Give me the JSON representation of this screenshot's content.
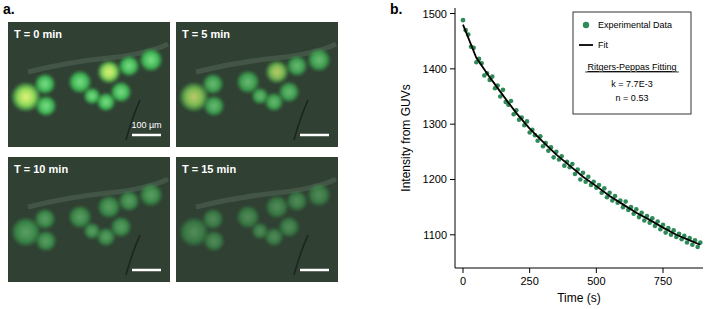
{
  "panel_labels": [
    "a.",
    "b."
  ],
  "panel_a": {
    "images": [
      {
        "label": "T = 0 min",
        "scale_bar": "100 µm"
      },
      {
        "label": "T = 5 min"
      },
      {
        "label": "T = 10 min"
      },
      {
        "label": "T = 15 min"
      }
    ]
  },
  "chart_data": {
    "type": "scatter",
    "x_label": "Time (s)",
    "y_label": "Intensity from GUVs",
    "annotations": [
      "Ritgers-Peppas Fitting",
      "k = 7.7E-3",
      "n = 0.53"
    ],
    "xlim": [
      -30,
      900
    ],
    "xticks": [
      0,
      250,
      500,
      750
    ],
    "ylim": [
      1040,
      1510
    ],
    "yticks": [
      1100,
      1200,
      1300,
      1400,
      1500
    ],
    "grid": false,
    "legend": "top-right",
    "series": [
      {
        "name": "Experimental Data",
        "type": "scatter",
        "marker": "circle",
        "color": "#2e8b57",
        "x": [
          0,
          10,
          20,
          30,
          40,
          50,
          60,
          70,
          80,
          90,
          100,
          110,
          120,
          130,
          140,
          150,
          160,
          170,
          180,
          190,
          200,
          210,
          220,
          230,
          240,
          250,
          260,
          270,
          280,
          290,
          300,
          310,
          320,
          330,
          340,
          350,
          360,
          370,
          380,
          390,
          400,
          410,
          420,
          430,
          440,
          450,
          460,
          470,
          480,
          490,
          500,
          510,
          520,
          530,
          540,
          550,
          560,
          570,
          580,
          590,
          600,
          610,
          620,
          630,
          640,
          650,
          660,
          670,
          680,
          690,
          700,
          710,
          720,
          730,
          740,
          750,
          760,
          770,
          780,
          790,
          800,
          810,
          820,
          830,
          840,
          850,
          860,
          870,
          880,
          890
        ],
        "values": [
          1488,
          1470,
          1462,
          1440,
          1438,
          1412,
          1418,
          1410,
          1388,
          1392,
          1380,
          1386,
          1365,
          1370,
          1350,
          1362,
          1340,
          1335,
          1342,
          1318,
          1325,
          1308,
          1312,
          1298,
          1305,
          1285,
          1290,
          1280,
          1270,
          1278,
          1260,
          1266,
          1252,
          1258,
          1240,
          1250,
          1236,
          1242,
          1225,
          1232,
          1222,
          1228,
          1210,
          1218,
          1200,
          1212,
          1196,
          1205,
          1190,
          1196,
          1185,
          1190,
          1176,
          1184,
          1168,
          1176,
          1162,
          1170,
          1158,
          1162,
          1150,
          1160,
          1145,
          1150,
          1138,
          1146,
          1132,
          1140,
          1126,
          1134,
          1122,
          1130,
          1116,
          1124,
          1110,
          1118,
          1104,
          1112,
          1100,
          1108,
          1096,
          1102,
          1092,
          1098,
          1086,
          1094,
          1082,
          1090,
          1078,
          1086
        ]
      },
      {
        "name": "Fit",
        "type": "line",
        "line_style": "solid",
        "color": "#000000",
        "x": [
          0,
          50,
          100,
          150,
          200,
          250,
          300,
          350,
          400,
          450,
          500,
          550,
          600,
          650,
          700,
          750,
          800,
          850,
          890
        ],
        "values": [
          1480,
          1420,
          1385,
          1352,
          1320,
          1292,
          1268,
          1245,
          1225,
          1205,
          1188,
          1170,
          1155,
          1140,
          1127,
          1113,
          1100,
          1090,
          1082
        ]
      }
    ]
  }
}
